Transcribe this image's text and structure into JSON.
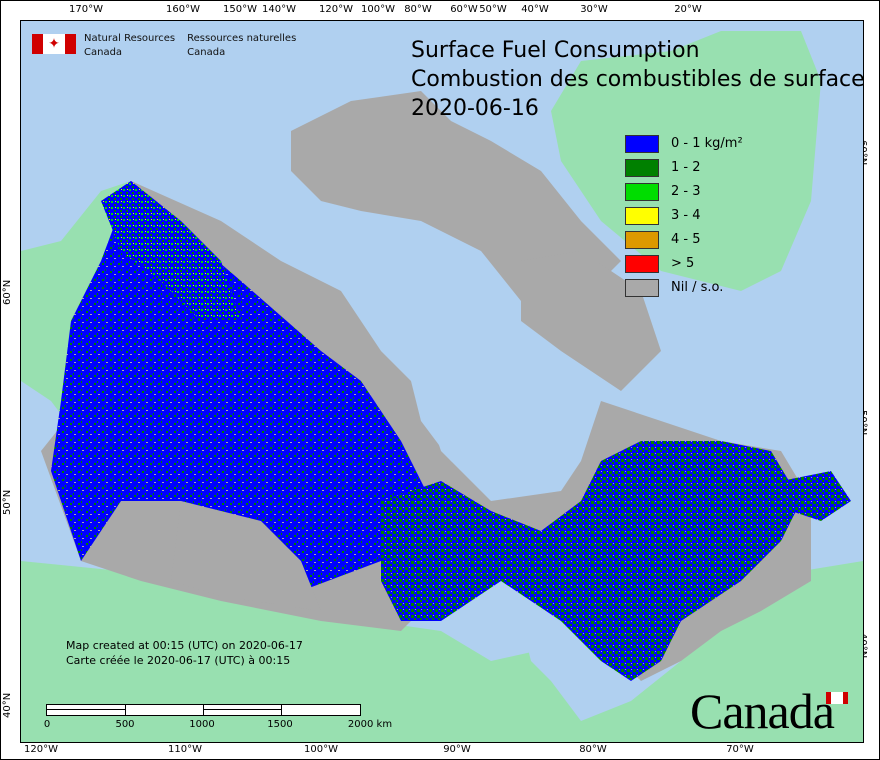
{
  "title": {
    "line1": "Surface Fuel Consumption",
    "line2": "Combustion des combustibles de surface",
    "date": "2020-06-16"
  },
  "agency": {
    "en_line1": "Natural Resources",
    "en_line2": "Canada",
    "fr_line1": "Ressources naturelles",
    "fr_line2": "Canada"
  },
  "legend": [
    {
      "label": "0 - 1 kg/m²",
      "color": "#0000ff"
    },
    {
      "label": "1 - 2",
      "color": "#008000"
    },
    {
      "label": "2 - 3",
      "color": "#00dd00"
    },
    {
      "label": "3 - 4",
      "color": "#ffff00"
    },
    {
      "label": "4 - 5",
      "color": "#dd9900"
    },
    {
      "label": "> 5",
      "color": "#ff0000"
    },
    {
      "label": "Nil / s.o.",
      "color": "#a9a9a9"
    }
  ],
  "note": {
    "en": "Map created at 00:15 (UTC) on 2020-06-17",
    "fr": "Carte créée le 2020-06-17 (UTC) à 00:15"
  },
  "scale_bar": {
    "labels": [
      "0",
      "500",
      "1000",
      "1500",
      "2000  km"
    ]
  },
  "axes": {
    "top": [
      "170°W",
      "160°W",
      "150°W",
      "140°W",
      "120°W",
      "100°W",
      "80°W",
      "60°W",
      "50°W",
      "40°W",
      "30°W",
      "20°W"
    ],
    "bottom": [
      "120°W",
      "110°W",
      "100°W",
      "90°W",
      "80°W",
      "70°W"
    ],
    "left": [
      "60°N",
      "50°N",
      "40°N"
    ],
    "right": [
      "60°N",
      "50°N",
      "40°N"
    ]
  },
  "wordmark": "Canada",
  "colors": {
    "water": "#b0d0f0",
    "land": "#98e0b0",
    "nil": "#a9a9a9"
  }
}
